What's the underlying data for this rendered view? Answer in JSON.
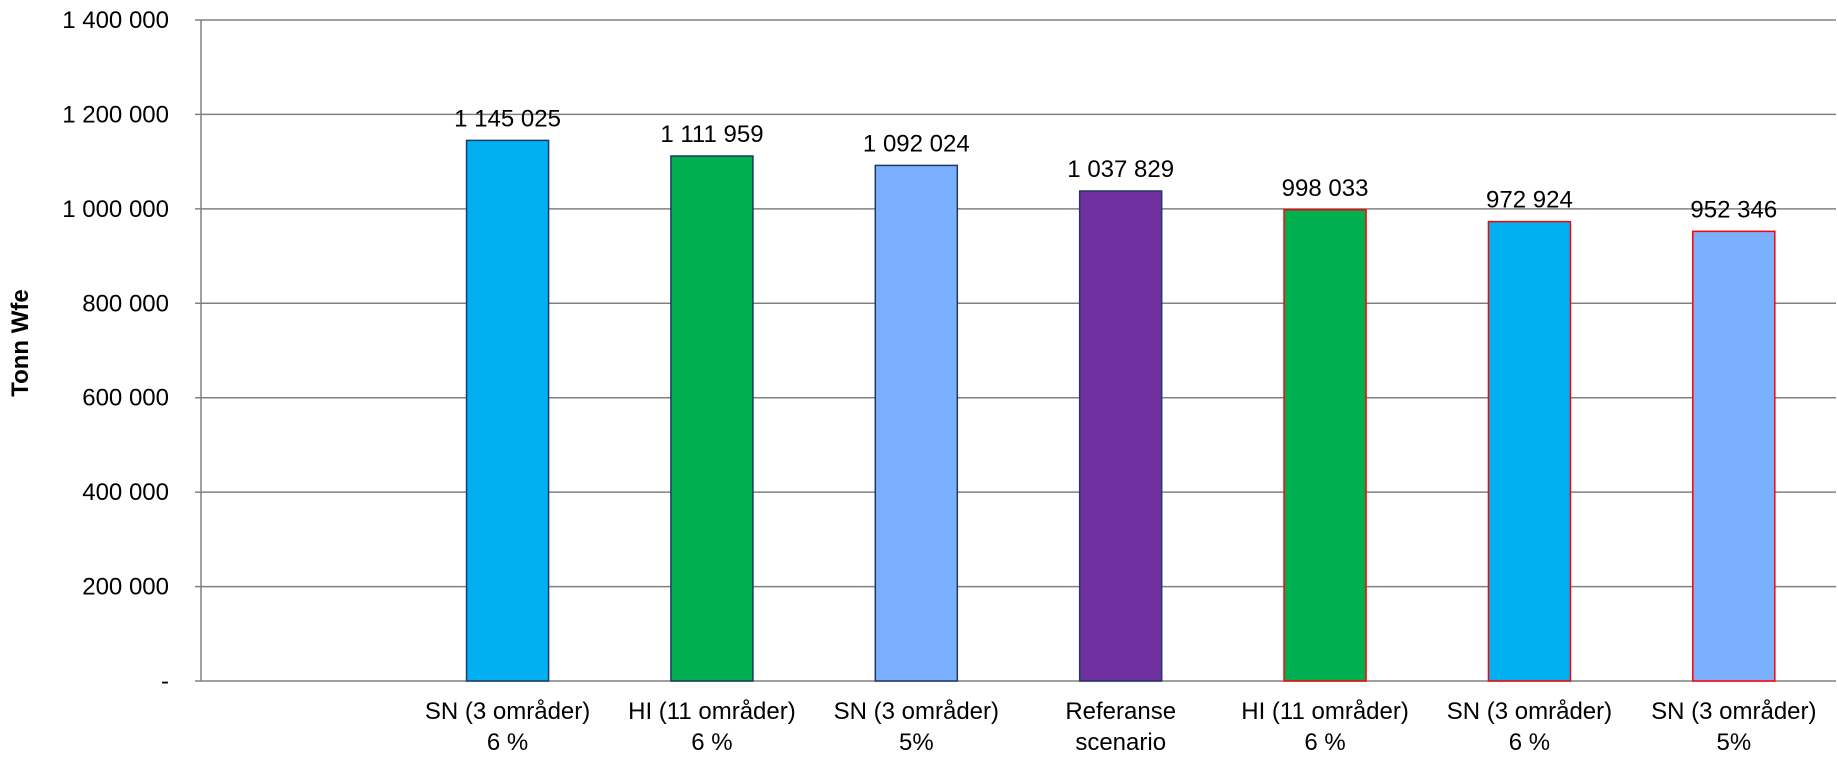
{
  "chart_data": {
    "type": "bar",
    "ylabel": "Tonn Wfe",
    "xlabel": "",
    "ylim": [
      0,
      1400000
    ],
    "y_ticks": [
      {
        "value": 0,
        "label": "-"
      },
      {
        "value": 200000,
        "label": "200 000"
      },
      {
        "value": 400000,
        "label": "400 000"
      },
      {
        "value": 600000,
        "label": "600 000"
      },
      {
        "value": 800000,
        "label": "800 000"
      },
      {
        "value": 1000000,
        "label": "1 000 000"
      },
      {
        "value": 1200000,
        "label": "1 200 000"
      },
      {
        "value": 1400000,
        "label": "1 400 000"
      }
    ],
    "grid": true,
    "legend": "none",
    "categories": [
      {
        "line1": "",
        "line2": ""
      },
      {
        "line1": "SN (3 områder)",
        "line2": "6 %"
      },
      {
        "line1": "HI (11 områder)",
        "line2": "6 %"
      },
      {
        "line1": "SN (3 områder)",
        "line2": "5%"
      },
      {
        "line1": "Referanse",
        "line2": "scenario"
      },
      {
        "line1": "HI (11 områder)",
        "line2": "6 %"
      },
      {
        "line1": "SN (3 områder)",
        "line2": "6 %"
      },
      {
        "line1": "SN (3 områder)",
        "line2": "5%"
      }
    ],
    "values": [
      null,
      1145025,
      1111959,
      1092024,
      1037829,
      998033,
      972924,
      952346
    ],
    "value_labels": [
      "",
      "1 145 025",
      "1 111 959",
      "1 092 024",
      "1 037 829",
      "998 033",
      "972 924",
      "952 346"
    ],
    "bar_colors": [
      "",
      "#00B0F0",
      "#00B050",
      "#7BAFFF",
      "#7030A0",
      "#00B050",
      "#00B0F0",
      "#7BAFFF"
    ],
    "bar_borders": [
      "",
      "#1F3864",
      "#1F3864",
      "#1F3864",
      "#1F3864",
      "#FF0000",
      "#FF0000",
      "#FF0000"
    ]
  }
}
